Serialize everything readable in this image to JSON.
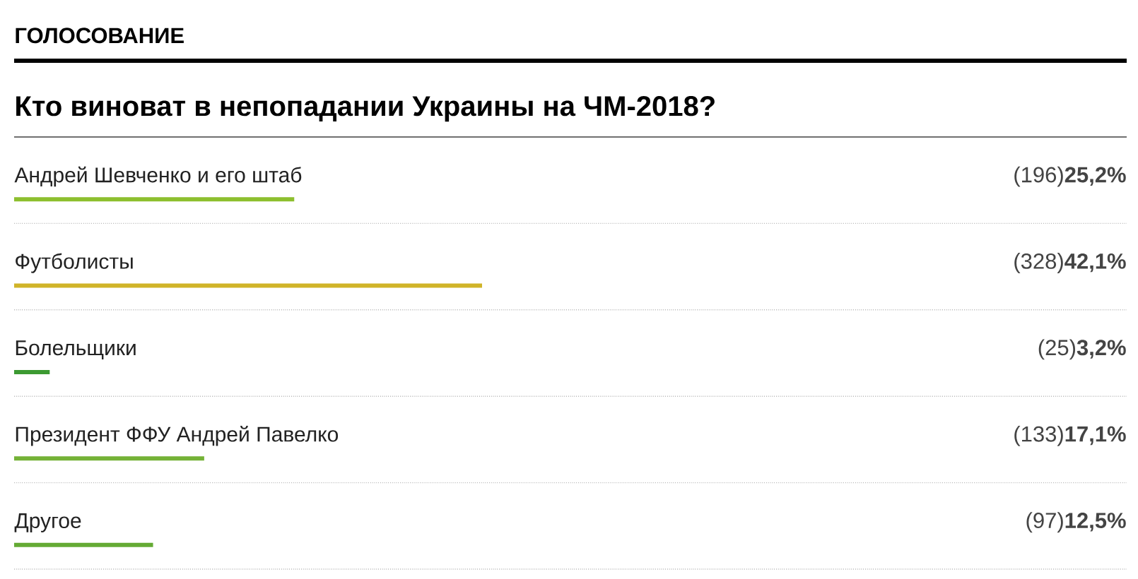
{
  "chart_data": {
    "type": "bar",
    "orientation": "horizontal",
    "title": "ГОЛОСОВАНИЕ",
    "subtitle": "Кто виноват в непопадании Украины на ЧМ-2018?",
    "categories": [
      "Андрей Шевченко и его штаб",
      "Футболисты",
      "Болельщики",
      "Президент ФФУ Андрей Павелко",
      "Другое"
    ],
    "values": [
      25.2,
      42.1,
      3.2,
      17.1,
      12.5
    ],
    "colors": [
      "#8dbf2e",
      "#d0b428",
      "#3c9a32",
      "#74b236",
      "#64aa34"
    ],
    "value_labels": [
      "(196)**25,2%**",
      "(328)**42,1%**",
      "(25)**3,2%**",
      "(133)**17,1%**",
      "(97)**12,5%**"
    ],
    "tick_labels": "y",
    "grid": "y"
  }
}
